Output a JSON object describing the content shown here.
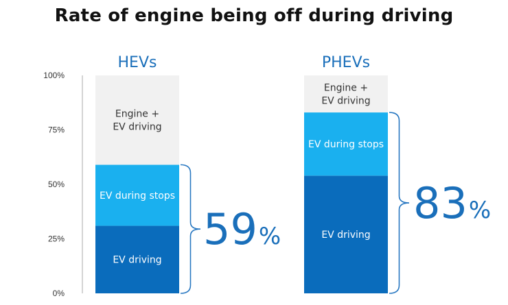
{
  "chart_data": {
    "type": "bar",
    "stacked": true,
    "title": "Rate of engine being off during driving",
    "yticks": [
      "0%",
      "25%",
      "50%",
      "75%",
      "100%"
    ],
    "ylim": [
      0,
      100
    ],
    "categories": [
      "HEVs",
      "PHEVs"
    ],
    "series": [
      {
        "name": "EV driving",
        "values": [
          31,
          54
        ],
        "color": "#0a6cbc",
        "label_color": "#ffffff"
      },
      {
        "name": "EV during stops",
        "values": [
          28,
          29
        ],
        "color": "#1ab0ef",
        "label_color": "#ffffff"
      },
      {
        "name": "Engine +\nEV driving",
        "values": [
          41,
          17
        ],
        "color": "#f1f1f1",
        "label_color": "#333333"
      }
    ],
    "totals": [
      {
        "value": "59",
        "unit": "%"
      },
      {
        "value": "83",
        "unit": "%"
      }
    ],
    "colors": {
      "accent": "#1a6fba",
      "axis": "#aaaaaa",
      "brace": "#2a79c2"
    }
  }
}
